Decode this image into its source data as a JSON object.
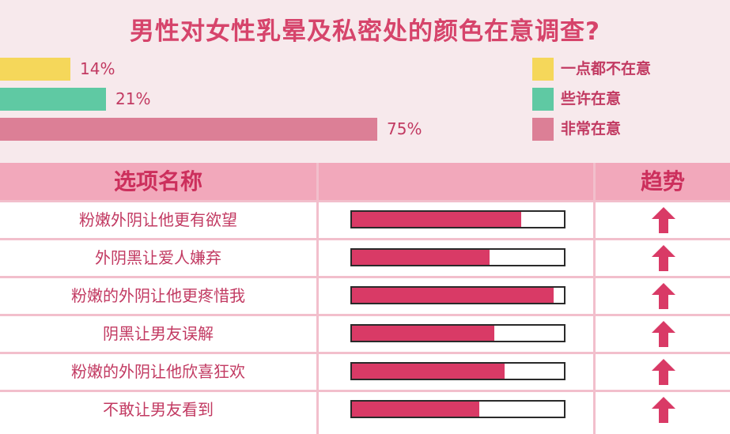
{
  "title": "男性对女性乳晕及私密处的颜色在意调查?",
  "chart_data": [
    {
      "type": "bar",
      "orientation": "horizontal",
      "categories": [
        "一点都不在意",
        "些许在意",
        "非常在意"
      ],
      "values": [
        14,
        21,
        75
      ],
      "value_labels": [
        "14%",
        "21%",
        "75%"
      ],
      "colors": [
        "#f5d75a",
        "#5fc9a3",
        "#dc7f96"
      ],
      "xlim": [
        0,
        100
      ],
      "legend_position": "right"
    },
    {
      "type": "table",
      "columns": [
        "选项名称",
        "",
        "趋势"
      ],
      "rows": [
        {
          "label": "粉嫩外阴让他更有欲望",
          "value": 0.8,
          "trend": "up"
        },
        {
          "label": "外阴黑让爱人嫌弃",
          "value": 0.65,
          "trend": "up"
        },
        {
          "label": "粉嫩的外阴让他更疼惜我",
          "value": 0.95,
          "trend": "up"
        },
        {
          "label": "阴黑让男友误解",
          "value": 0.67,
          "trend": "up"
        },
        {
          "label": "粉嫩的外阴让他欣喜狂欢",
          "value": 0.72,
          "trend": "up"
        },
        {
          "label": "不敢让男友看到",
          "value": 0.6,
          "trend": "up"
        }
      ],
      "bar_color": "#d93a66",
      "arrow_color": "#d93a66"
    }
  ]
}
